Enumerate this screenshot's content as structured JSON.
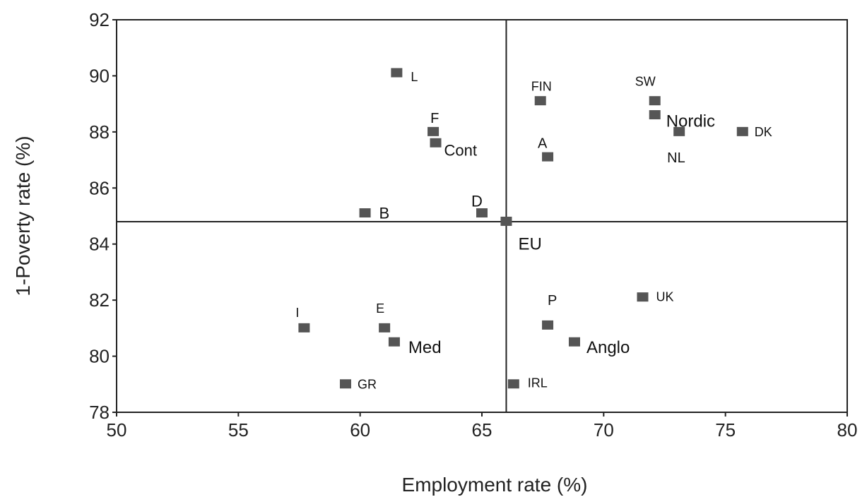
{
  "chart_data": {
    "type": "scatter",
    "xlabel": "Employment rate (%)",
    "ylabel": "1-Poverty rate (%)",
    "xlim": [
      50,
      80
    ],
    "ylim": [
      78,
      92
    ],
    "xticks": [
      50,
      55,
      60,
      65,
      70,
      75,
      80
    ],
    "yticks": [
      78,
      80,
      82,
      84,
      86,
      88,
      90,
      92
    ],
    "reference_lines": {
      "x": 66,
      "y": 84.8
    },
    "grid": false,
    "marker_color": "#555555",
    "points": [
      {
        "label": "L",
        "x": 61.5,
        "y": 90.1
      },
      {
        "label": "FIN",
        "x": 67.4,
        "y": 89.1
      },
      {
        "label": "SW",
        "x": 72.1,
        "y": 89.1
      },
      {
        "label": "Nordic",
        "x": 72.1,
        "y": 88.6
      },
      {
        "label": "F",
        "x": 63.0,
        "y": 88.0
      },
      {
        "label": "NL",
        "x": 73.1,
        "y": 88.0
      },
      {
        "label": "DK",
        "x": 75.7,
        "y": 88.0
      },
      {
        "label": "Cont",
        "x": 63.1,
        "y": 87.6
      },
      {
        "label": "A",
        "x": 67.7,
        "y": 87.1
      },
      {
        "label": "B",
        "x": 60.2,
        "y": 85.1
      },
      {
        "label": "D",
        "x": 65.0,
        "y": 85.1
      },
      {
        "label": "EU",
        "x": 66.0,
        "y": 84.8
      },
      {
        "label": "UK",
        "x": 71.6,
        "y": 82.1
      },
      {
        "label": "I",
        "x": 57.7,
        "y": 81.0
      },
      {
        "label": "E",
        "x": 61.0,
        "y": 81.0
      },
      {
        "label": "P",
        "x": 67.7,
        "y": 81.1
      },
      {
        "label": "Med",
        "x": 61.4,
        "y": 80.5
      },
      {
        "label": "Anglo",
        "x": 68.8,
        "y": 80.5
      },
      {
        "label": "GR",
        "x": 59.4,
        "y": 79.0
      },
      {
        "label": "IRL",
        "x": 66.3,
        "y": 79.0
      }
    ]
  }
}
